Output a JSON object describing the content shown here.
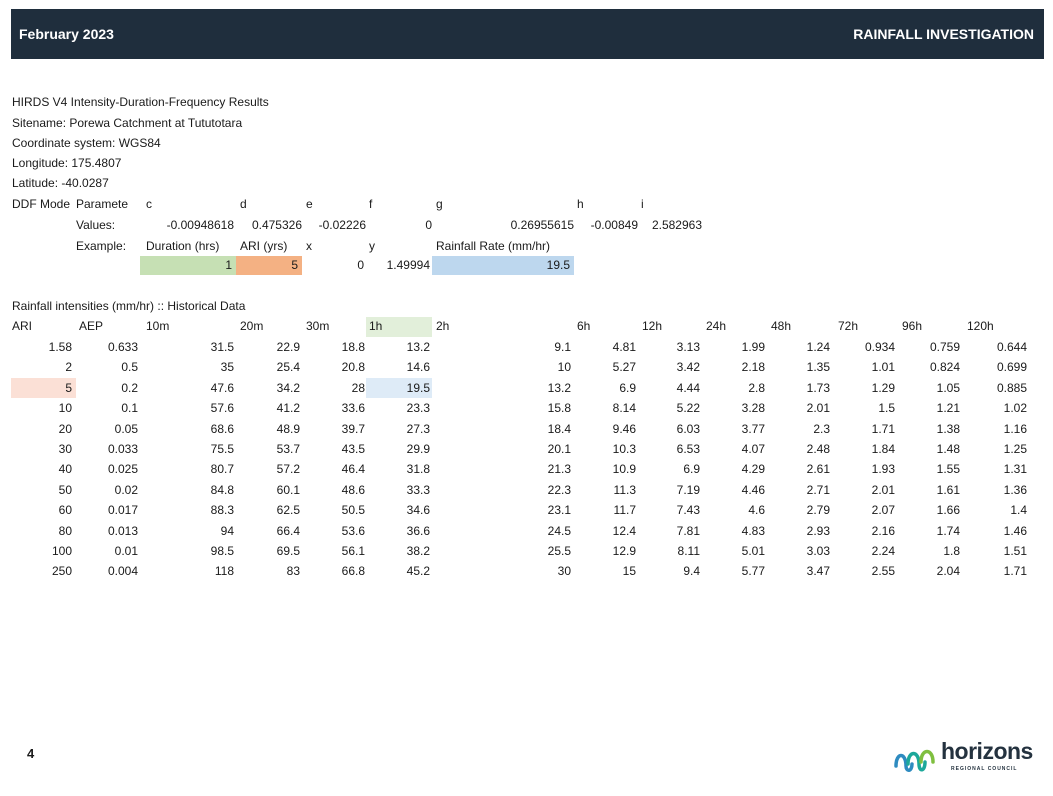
{
  "header": {
    "date": "February 2023",
    "title": "RAINFALL INVESTIGATION"
  },
  "meta": {
    "line1": "HIRDS V4 Intensity-Duration-Frequency Results",
    "line2": "Sitename: Porewa Catchment at Tututotara",
    "line3": "Coordinate system: WGS84",
    "line4": "Longitude: 175.4807",
    "line5": "Latitude: -40.0287"
  },
  "ddf": {
    "label1": "DDF Mode",
    "label2": "Paramete",
    "params": [
      "c",
      "d",
      "e",
      "f",
      "g",
      "h",
      "i"
    ],
    "values_label": "Values:",
    "values": [
      "-0.00948618",
      "0.475326",
      "-0.02226",
      "0",
      "0.26955615",
      "-0.00849",
      "2.582963"
    ],
    "example_label": "Example:",
    "duration_label": "Duration (hrs)",
    "ari_label": "ARI (yrs)",
    "x_label": "x",
    "y_label": "y",
    "rate_label": "Rainfall Rate (mm/hr)",
    "duration_value": "1",
    "ari_value": "5",
    "x_value": "0",
    "y_value": "1.49994",
    "rate_value": "19.5"
  },
  "table": {
    "title": "Rainfall intensities (mm/hr) :: Historical Data",
    "headers": [
      "ARI",
      "AEP",
      "10m",
      "20m",
      "30m",
      "1h",
      "2h",
      "6h",
      "12h",
      "24h",
      "48h",
      "72h",
      "96h",
      "120h"
    ],
    "rows": [
      [
        "1.58",
        "0.633",
        "31.5",
        "22.9",
        "18.8",
        "13.2",
        "9.1",
        "4.81",
        "3.13",
        "1.99",
        "1.24",
        "0.934",
        "0.759",
        "0.644"
      ],
      [
        "2",
        "0.5",
        "35",
        "25.4",
        "20.8",
        "14.6",
        "10",
        "5.27",
        "3.42",
        "2.18",
        "1.35",
        "1.01",
        "0.824",
        "0.699"
      ],
      [
        "5",
        "0.2",
        "47.6",
        "34.2",
        "28",
        "19.5",
        "13.2",
        "6.9",
        "4.44",
        "2.8",
        "1.73",
        "1.29",
        "1.05",
        "0.885"
      ],
      [
        "10",
        "0.1",
        "57.6",
        "41.2",
        "33.6",
        "23.3",
        "15.8",
        "8.14",
        "5.22",
        "3.28",
        "2.01",
        "1.5",
        "1.21",
        "1.02"
      ],
      [
        "20",
        "0.05",
        "68.6",
        "48.9",
        "39.7",
        "27.3",
        "18.4",
        "9.46",
        "6.03",
        "3.77",
        "2.3",
        "1.71",
        "1.38",
        "1.16"
      ],
      [
        "30",
        "0.033",
        "75.5",
        "53.7",
        "43.5",
        "29.9",
        "20.1",
        "10.3",
        "6.53",
        "4.07",
        "2.48",
        "1.84",
        "1.48",
        "1.25"
      ],
      [
        "40",
        "0.025",
        "80.7",
        "57.2",
        "46.4",
        "31.8",
        "21.3",
        "10.9",
        "6.9",
        "4.29",
        "2.61",
        "1.93",
        "1.55",
        "1.31"
      ],
      [
        "50",
        "0.02",
        "84.8",
        "60.1",
        "48.6",
        "33.3",
        "22.3",
        "11.3",
        "7.19",
        "4.46",
        "2.71",
        "2.01",
        "1.61",
        "1.36"
      ],
      [
        "60",
        "0.017",
        "88.3",
        "62.5",
        "50.5",
        "34.6",
        "23.1",
        "11.7",
        "7.43",
        "4.6",
        "2.79",
        "2.07",
        "1.66",
        "1.4"
      ],
      [
        "80",
        "0.013",
        "94",
        "66.4",
        "53.6",
        "36.6",
        "24.5",
        "12.4",
        "7.81",
        "4.83",
        "2.93",
        "2.16",
        "1.74",
        "1.46"
      ],
      [
        "100",
        "0.01",
        "98.5",
        "69.5",
        "56.1",
        "38.2",
        "25.5",
        "12.9",
        "8.11",
        "5.01",
        "3.03",
        "2.24",
        "1.8",
        "1.51"
      ],
      [
        "250",
        "0.004",
        "118",
        "83",
        "66.8",
        "45.2",
        "30",
        "15",
        "9.4",
        "5.77",
        "3.47",
        "2.55",
        "2.04",
        "1.71"
      ]
    ]
  },
  "footer": {
    "page_number": "4",
    "logo_word": "horizons",
    "logo_sub": "REGIONAL COUNCIL"
  },
  "colors": {
    "header_bg": "#1f2e3d",
    "green": "#c6e0b4",
    "orange": "#f4b183",
    "blue": "#bdd7ee"
  }
}
